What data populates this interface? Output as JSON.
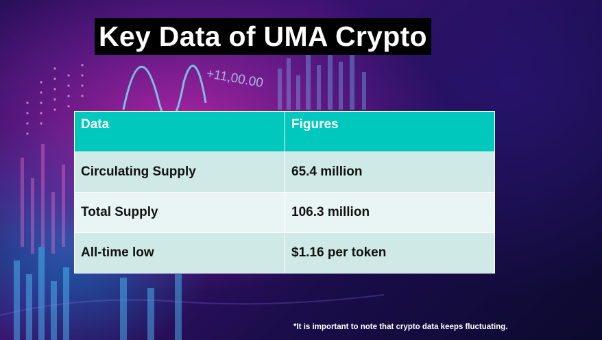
{
  "slide": {
    "title": "Key Data of UMA Crypto",
    "background_ticker": "+11,00.00",
    "footnote": "*It is important to note that crypto data keeps fluctuating."
  },
  "table": {
    "headers": [
      "Data",
      "Figures"
    ],
    "rows": [
      {
        "label": "Circulating Supply",
        "value": "65.4 million"
      },
      {
        "label": "Total Supply",
        "value": "106.3 million"
      },
      {
        "label": "All-time low",
        "value": "$1.16 per token"
      }
    ]
  },
  "colors": {
    "header_bg": "#00c8bc",
    "row_dark": "#cfe9e7",
    "row_light": "#e9f5f4",
    "title_bg": "#000000"
  }
}
